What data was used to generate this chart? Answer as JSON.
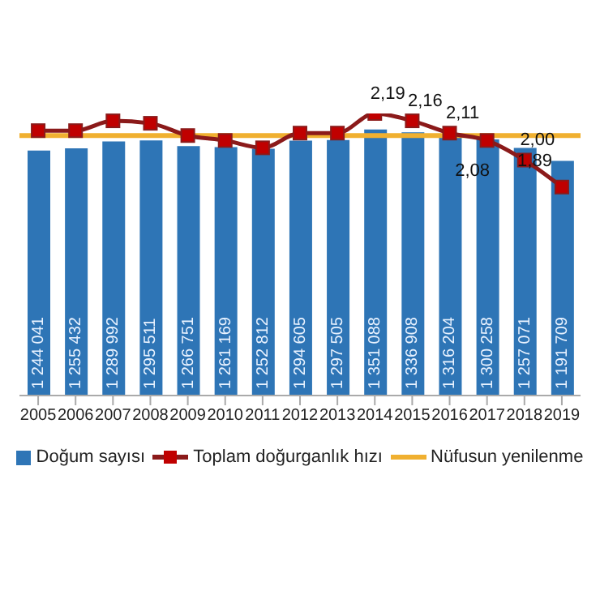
{
  "chart_data": {
    "type": "bar",
    "categories": [
      "2005",
      "2006",
      "2007",
      "2008",
      "2009",
      "2010",
      "2011",
      "2012",
      "2013",
      "2014",
      "2015",
      "2016",
      "2017",
      "2018",
      "2019"
    ],
    "series": [
      {
        "name": "Doğum sayısı",
        "color": "#2e75b6",
        "values": [
          1244041,
          1255432,
          1289992,
          1295511,
          1266751,
          1261169,
          1252812,
          1294605,
          1297505,
          1351088,
          1336908,
          1316204,
          1300258,
          1257071,
          1191709
        ],
        "value_labels": [
          "1 244 041",
          "1 255 432",
          "1 289 992",
          "1 295 511",
          "1 266 751",
          "1 261 169",
          "1 252 812",
          "1 294 605",
          "1 297 505",
          "1 351 088",
          "1 336 908",
          "1 316 204",
          "1 300 258",
          "1 257 071",
          "1 191 709"
        ]
      },
      {
        "name": "Toplam doğurganlık hızı",
        "type": "line",
        "axis": "y2",
        "color": "#8b1a1a",
        "values": [
          2.12,
          2.12,
          2.16,
          2.15,
          2.1,
          2.08,
          2.05,
          2.11,
          2.11,
          2.19,
          2.16,
          2.11,
          2.08,
          2.0,
          1.89
        ],
        "value_labels": [
          null,
          null,
          null,
          null,
          null,
          null,
          null,
          null,
          null,
          "2,19",
          "2,16",
          "2,11",
          "2,08",
          "2,00",
          "1,89"
        ]
      }
    ],
    "tick_labels": "x",
    "marker": "square",
    "legend": "bottom",
    "ref_lines": [
      {
        "axis": "y2",
        "value": 2.1,
        "label": "Nüfusun yenilenme",
        "color": "#f0b030"
      }
    ]
  }
}
